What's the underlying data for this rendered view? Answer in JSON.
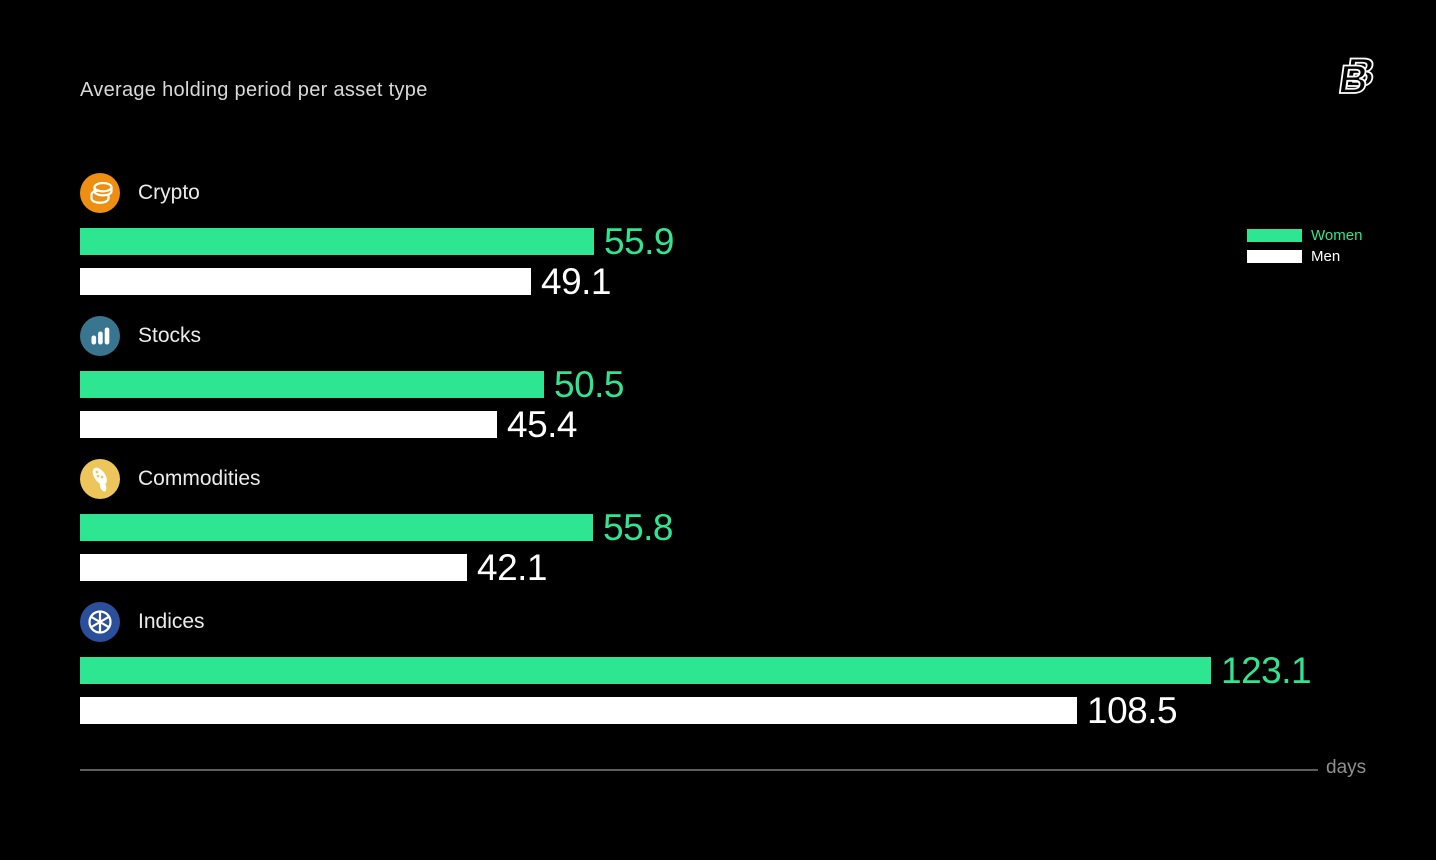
{
  "header": {
    "title": "Average holding period per asset type"
  },
  "brand": {
    "mark": "B"
  },
  "chart_data": {
    "type": "bar",
    "orientation": "horizontal",
    "title": "Average holding period per asset type",
    "xlabel": "days",
    "ylabel": "",
    "xlim": [
      0,
      134.7
    ],
    "grid": false,
    "legend_position": "top-right",
    "background_color": "#000000",
    "categories": [
      "Crypto",
      "Stocks",
      "Commodities",
      "Indices"
    ],
    "category_icons": [
      {
        "name": "coins-icon",
        "color": "#EE8F12"
      },
      {
        "name": "bar-chart-icon",
        "color": "#3A7590"
      },
      {
        "name": "corn-icon",
        "color": "#ECC65B"
      },
      {
        "name": "pie-chart-icon",
        "color": "#2C4F9C"
      }
    ],
    "series": [
      {
        "name": "Women",
        "color": "#2EE592",
        "values": [
          55.9,
          50.5,
          55.8,
          123.1
        ]
      },
      {
        "name": "Men",
        "color": "#FFFFFF",
        "values": [
          49.1,
          45.4,
          42.1,
          108.5
        ]
      }
    ]
  }
}
